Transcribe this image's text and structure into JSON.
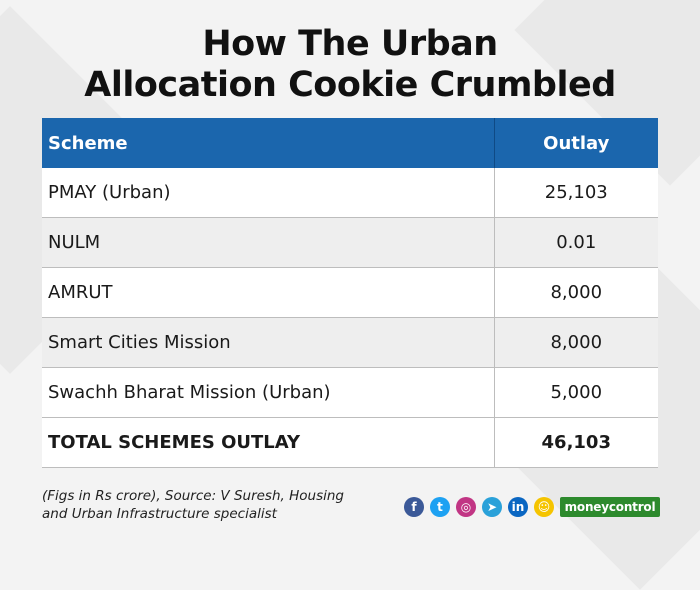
{
  "title": {
    "line1": "How The Urban",
    "line2": "Allocation Cookie Crumbled"
  },
  "table": {
    "headers": [
      "Scheme",
      "Outlay"
    ],
    "rows": [
      {
        "scheme": "PMAY (Urban)",
        "outlay": "25,103"
      },
      {
        "scheme": "NULM",
        "outlay": "0.01"
      },
      {
        "scheme": "AMRUT",
        "outlay": "8,000"
      },
      {
        "scheme": "Smart Cities Mission",
        "outlay": "8,000"
      },
      {
        "scheme": "Swachh Bharat Mission (Urban)",
        "outlay": "5,000"
      }
    ],
    "total": {
      "scheme": "TOTAL SCHEMES OUTLAY",
      "outlay": "46,103"
    }
  },
  "footnote": {
    "line1": "(Figs in Rs crore), Source: V Suresh, Housing",
    "line2": "and Urban Infrastructure specialist"
  },
  "social": [
    {
      "name": "facebook-icon",
      "glyph": "f",
      "color": "#3b5998"
    },
    {
      "name": "twitter-icon",
      "glyph": "t",
      "color": "#1da1f2"
    },
    {
      "name": "instagram-icon",
      "glyph": "◎",
      "color": "#c13584"
    },
    {
      "name": "telegram-icon",
      "glyph": "➤",
      "color": "#2aa1d9"
    },
    {
      "name": "linkedin-icon",
      "glyph": "in",
      "color": "#0a66c2"
    },
    {
      "name": "snapchat-icon",
      "glyph": "☺",
      "color": "#f5c400"
    }
  ],
  "brand": {
    "name": "moneycontrol",
    "color": "#2d8a2d"
  },
  "colors": {
    "header_bg": "#1b66ad",
    "page_bg": "#f3f3f3"
  }
}
